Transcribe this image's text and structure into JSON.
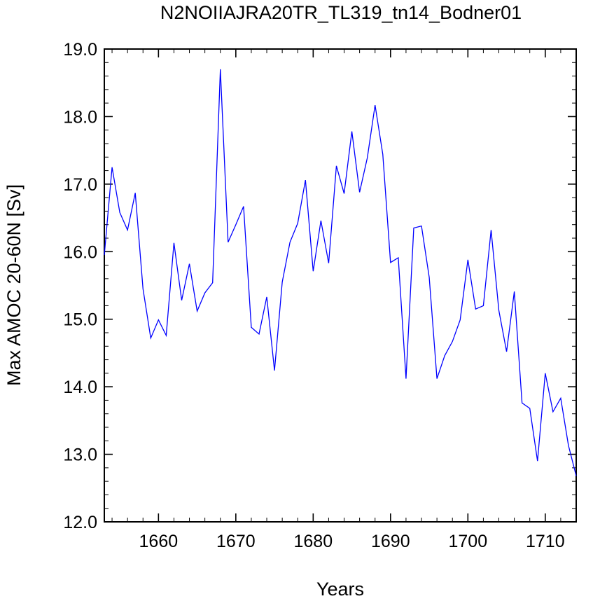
{
  "chart_data": {
    "type": "line",
    "title": "N2NOIIAJRA20TR_TL319_tn14_Bodner01",
    "xlabel": "Years",
    "ylabel": "Max AMOC 20-60N [Sv]",
    "xlim": [
      1653,
      1714
    ],
    "ylim": [
      12.0,
      19.0
    ],
    "x_ticks": [
      "1660",
      "1670",
      "1680",
      "1690",
      "1700",
      "1710"
    ],
    "y_ticks": [
      "12.0",
      "13.0",
      "14.0",
      "15.0",
      "16.0",
      "17.0",
      "18.0",
      "19.0"
    ],
    "grid": false,
    "series": [
      {
        "color": "#0000ff",
        "x": [
          1653,
          1654,
          1655,
          1656,
          1657,
          1658,
          1659,
          1660,
          1661,
          1662,
          1663,
          1664,
          1665,
          1666,
          1667,
          1668,
          1669,
          1670,
          1671,
          1672,
          1673,
          1674,
          1675,
          1676,
          1677,
          1678,
          1679,
          1680,
          1681,
          1682,
          1683,
          1684,
          1685,
          1686,
          1687,
          1688,
          1689,
          1690,
          1691,
          1692,
          1693,
          1694,
          1695,
          1696,
          1697,
          1698,
          1699,
          1700,
          1701,
          1702,
          1703,
          1704,
          1705,
          1706,
          1707,
          1708,
          1709,
          1710,
          1711,
          1712,
          1713,
          1714
        ],
        "values": [
          15.95,
          17.25,
          16.58,
          16.32,
          16.87,
          15.45,
          14.72,
          14.99,
          14.76,
          16.13,
          15.28,
          15.82,
          15.12,
          15.39,
          15.54,
          18.7,
          16.14,
          16.4,
          16.67,
          14.88,
          14.78,
          15.33,
          14.24,
          15.55,
          16.14,
          16.42,
          17.06,
          15.71,
          16.46,
          15.83,
          17.27,
          16.86,
          17.78,
          16.88,
          17.39,
          18.17,
          17.44,
          15.84,
          15.91,
          14.12,
          16.35,
          16.38,
          15.62,
          14.12,
          14.46,
          14.67,
          14.99,
          15.88,
          15.15,
          15.2,
          16.32,
          15.13,
          14.52,
          15.41,
          13.76,
          13.68,
          12.9,
          14.2,
          13.63,
          13.83,
          13.13,
          12.68
        ]
      }
    ]
  }
}
